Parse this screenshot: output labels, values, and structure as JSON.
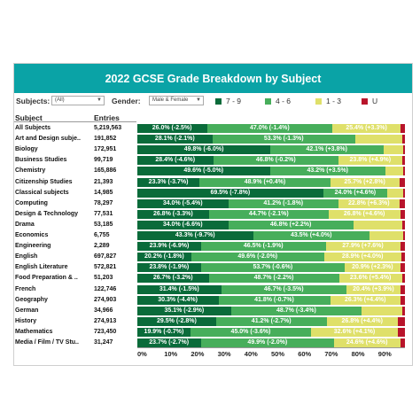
{
  "title": "2022 GCSE Grade Breakdown by Subject",
  "filters": {
    "subjects_label": "Subjects:",
    "subjects_value": "(All)",
    "gender_label": "Gender:",
    "gender_value": "Male & Female"
  },
  "legend": [
    {
      "label": "7 - 9",
      "color": "#0a6b3a"
    },
    {
      "label": "4 - 6",
      "color": "#47ae5b"
    },
    {
      "label": "1 - 3",
      "color": "#dfe06a"
    },
    {
      "label": "U",
      "color": "#b8142b"
    }
  ],
  "columns": {
    "subject": "Subject",
    "entries": "Entries"
  },
  "chart_data": {
    "type": "bar",
    "stacked": true,
    "orientation": "horizontal",
    "title": "2022 GCSE Grade Breakdown by Subject",
    "xlim": [
      0,
      100
    ],
    "x_ticks": [
      "0%",
      "10%",
      "20%",
      "30%",
      "40%",
      "50%",
      "60%",
      "70%",
      "80%",
      "90%"
    ],
    "series_names": [
      "7 - 9",
      "4 - 6",
      "1 - 3",
      "U"
    ],
    "rows": [
      {
        "subject": "All Subjects",
        "entries": "5,219,563",
        "v": [
          26.0,
          47.0,
          25.4,
          1.6
        ],
        "labels": [
          "26.0% (-2.5%)",
          "47.0% (-1.4%)",
          "25.4% (+3.3%)"
        ]
      },
      {
        "subject": "Art and Design subje..",
        "entries": "191,852",
        "v": [
          28.1,
          53.3,
          17.6,
          1.0
        ],
        "labels": [
          "28.1% (-2.1%)",
          "53.3% (-1.3%)",
          ""
        ]
      },
      {
        "subject": "Biology",
        "entries": "172,951",
        "v": [
          49.8,
          42.1,
          7.6,
          0.5
        ],
        "labels": [
          "49.8% (-6.0%)",
          "42.1% (+3.8%)",
          ""
        ]
      },
      {
        "subject": "Business Studies",
        "entries": "99,719",
        "v": [
          28.4,
          46.8,
          23.8,
          1.0
        ],
        "labels": [
          "28.4% (-4.6%)",
          "46.8% (-0.2%)",
          "23.8% (+4.9%)"
        ]
      },
      {
        "subject": "Chemistry",
        "entries": "165,886",
        "v": [
          49.6,
          43.2,
          6.7,
          0.5
        ],
        "labels": [
          "49.6% (-5.0%)",
          "43.2% (+3.5%)",
          ""
        ]
      },
      {
        "subject": "Citizenship Studies",
        "entries": "21,393",
        "v": [
          23.3,
          48.9,
          25.7,
          2.1
        ],
        "labels": [
          "23.3% (-3.7%)",
          "48.9% (+0.4%)",
          "25.7% (+2.8%)"
        ]
      },
      {
        "subject": "Classical subjects",
        "entries": "14,985",
        "v": [
          69.5,
          24.0,
          6.0,
          0.5
        ],
        "labels": [
          "69.5% (-7.8%)",
          "24.0% (+4.6%)",
          ""
        ]
      },
      {
        "subject": "Computing",
        "entries": "78,297",
        "v": [
          34.0,
          41.2,
          22.8,
          2.0
        ],
        "labels": [
          "34.0% (-5.4%)",
          "41.2% (-1.8%)",
          "22.8% (+6.3%)"
        ]
      },
      {
        "subject": "Design & Technology",
        "entries": "77,531",
        "v": [
          26.8,
          44.7,
          26.8,
          1.7
        ],
        "labels": [
          "26.8% (-3.3%)",
          "44.7% (-2.1%)",
          "26.8% (+4.6%)"
        ]
      },
      {
        "subject": "Drama",
        "entries": "53,185",
        "v": [
          34.0,
          46.8,
          18.2,
          1.0
        ],
        "labels": [
          "34.0% (-6.6%)",
          "46.8% (+2.2%)",
          ""
        ]
      },
      {
        "subject": "Economics",
        "entries": "6,755",
        "v": [
          43.3,
          43.5,
          12.4,
          0.8
        ],
        "labels": [
          "43.3% (-9.7%)",
          "43.5% (+4.0%)",
          ""
        ]
      },
      {
        "subject": "Engineering",
        "entries": "2,289",
        "v": [
          23.9,
          46.5,
          27.9,
          1.7
        ],
        "labels": [
          "23.9% (-6.9%)",
          "46.5% (-1.9%)",
          "27.9% (+7.6%)"
        ]
      },
      {
        "subject": "English",
        "entries": "697,827",
        "v": [
          20.2,
          49.6,
          28.9,
          1.3
        ],
        "labels": [
          "20.2% (-1.8%)",
          "49.6% (-2.0%)",
          "28.9% (+4.0%)"
        ]
      },
      {
        "subject": "English Literature",
        "entries": "572,821",
        "v": [
          23.8,
          53.7,
          20.9,
          1.6
        ],
        "labels": [
          "23.8% (-1.9%)",
          "53.7% (-0.6%)",
          "20.9% (+2.3%)"
        ]
      },
      {
        "subject": "Food Preparation & ..",
        "entries": "51,203",
        "v": [
          26.7,
          48.7,
          23.6,
          1.0
        ],
        "labels": [
          "26.7% (-3.2%)",
          "48.7% (-2.2%)",
          "23.6% (+5.4%)"
        ]
      },
      {
        "subject": "French",
        "entries": "122,746",
        "v": [
          31.4,
          46.7,
          20.4,
          1.5
        ],
        "labels": [
          "31.4% (-1.5%)",
          "46.7% (-3.5%)",
          "20.4% (+3.9%)"
        ]
      },
      {
        "subject": "Geography",
        "entries": "274,903",
        "v": [
          30.3,
          41.8,
          26.3,
          1.6
        ],
        "labels": [
          "30.3% (-4.4%)",
          "41.8% (-0.7%)",
          "26.3% (+4.4%)"
        ]
      },
      {
        "subject": "German",
        "entries": "34,966",
        "v": [
          35.1,
          48.7,
          15.2,
          1.0
        ],
        "labels": [
          "35.1% (-2.9%)",
          "48.7% (-3.4%)",
          ""
        ]
      },
      {
        "subject": "History",
        "entries": "274,913",
        "v": [
          29.5,
          41.2,
          26.8,
          2.5
        ],
        "labels": [
          "29.5% (-2.8%)",
          "41.2% (-2.7%)",
          "26.8% (+4.4%)"
        ]
      },
      {
        "subject": "Mathematics",
        "entries": "723,450",
        "v": [
          19.9,
          45.0,
          32.6,
          2.5
        ],
        "labels": [
          "19.9% (-0.7%)",
          "45.0% (-3.6%)",
          "32.6% (+4.1%)"
        ]
      },
      {
        "subject": "Media / Film / TV Stu..",
        "entries": "31,247",
        "v": [
          23.7,
          49.9,
          24.6,
          1.8
        ],
        "labels": [
          "23.7% (-2.7%)",
          "49.9% (-2.0%)",
          "24.6% (+4.6%)"
        ]
      }
    ]
  }
}
